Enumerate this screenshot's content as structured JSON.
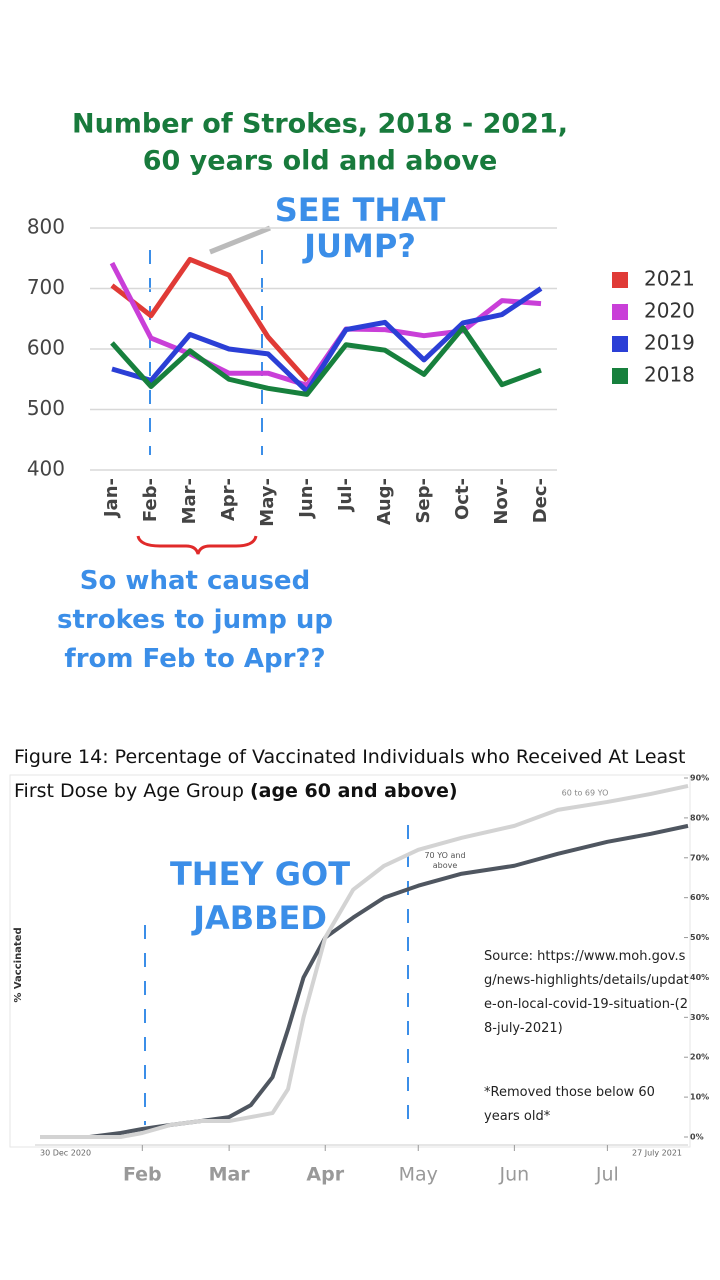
{
  "chart_data": [
    {
      "type": "line",
      "title": [
        "Number of Strokes, 2018 - 2021,",
        "60 years old and above"
      ],
      "categories": [
        "Jan-",
        "Feb-",
        "Mar-",
        "Apr-",
        "May-",
        "Jun-",
        "Jul-",
        "Aug-",
        "Sep-",
        "Oct-",
        "Nov-",
        "Dec-"
      ],
      "series": [
        {
          "name": "2021",
          "color": "#e03a36",
          "values": [
            705,
            655,
            748,
            722,
            620,
            548,
            null,
            null,
            null,
            null,
            null,
            null
          ]
        },
        {
          "name": "2020",
          "color": "#c93fd8",
          "values": [
            742,
            618,
            592,
            560,
            560,
            540,
            633,
            632,
            622,
            630,
            680,
            675
          ]
        },
        {
          "name": "2019",
          "color": "#2b3fd6",
          "values": [
            567,
            548,
            624,
            600,
            592,
            530,
            632,
            644,
            582,
            643,
            657,
            700
          ]
        },
        {
          "name": "2018",
          "color": "#17803d",
          "values": [
            610,
            538,
            597,
            550,
            535,
            525,
            607,
            598,
            558,
            635,
            541,
            565
          ]
        }
      ],
      "ylim": [
        400,
        800
      ],
      "yticks": [
        400,
        500,
        600,
        700,
        800
      ],
      "grid": true,
      "legend": "right",
      "annotations": [
        "SEE THAT JUMP?",
        "So what caused strokes to jump up from Feb to Apr??"
      ]
    },
    {
      "type": "line",
      "title": "Figure 14: Percentage of Vaccinated Individuals who Received At Least First Dose by Age Group",
      "title_emphasis": "(age 60 and above)",
      "y_label": "% Vaccinated",
      "x": [
        "2020-12-30",
        "2021-01-15",
        "2021-01-25",
        "2021-02-01",
        "2021-02-10",
        "2021-02-20",
        "2021-03-01",
        "2021-03-08",
        "2021-03-15",
        "2021-03-20",
        "2021-03-25",
        "2021-04-01",
        "2021-04-10",
        "2021-04-20",
        "2021-05-01",
        "2021-05-15",
        "2021-06-01",
        "2021-06-15",
        "2021-07-01",
        "2021-07-15",
        "2021-07-27"
      ],
      "series": [
        {
          "name": "70 YO and above",
          "color": "#4f5660",
          "values": [
            0,
            0,
            1,
            2,
            3,
            4,
            5,
            8,
            15,
            27,
            40,
            50,
            55,
            60,
            63,
            66,
            68,
            71,
            74,
            76,
            78
          ]
        },
        {
          "name": "60 to 69 YO",
          "color": "#d3d3d3",
          "values": [
            0,
            0,
            0,
            1,
            3,
            4,
            4,
            5,
            6,
            12,
            30,
            50,
            62,
            68,
            72,
            75,
            78,
            82,
            84,
            86,
            88
          ]
        }
      ],
      "xlim": [
        "2020-12-30",
        "2021-07-27"
      ],
      "xticks": [
        {
          "value": "2021-02-01",
          "label": "Feb"
        },
        {
          "value": "2021-03-01",
          "label": "Mar"
        },
        {
          "value": "2021-04-01",
          "label": "Apr"
        },
        {
          "value": "2021-05-01",
          "label": "May"
        },
        {
          "value": "2021-06-01",
          "label": "Jun"
        },
        {
          "value": "2021-07-01",
          "label": "Jul"
        }
      ],
      "date_range_labels": [
        "30 Dec 2020",
        "27 July 2021"
      ],
      "ylim": [
        0,
        90
      ],
      "yticks": [
        {
          "value": 0,
          "label": "0%"
        },
        {
          "value": 10,
          "label": "10%"
        },
        {
          "value": 20,
          "label": "20%"
        },
        {
          "value": 30,
          "label": "30%"
        },
        {
          "value": 40,
          "label": "40%"
        },
        {
          "value": 50,
          "label": "50%"
        },
        {
          "value": 60,
          "label": "60%"
        },
        {
          "value": 70,
          "label": "70%"
        },
        {
          "value": 80,
          "label": "80%"
        },
        {
          "value": 90,
          "label": "90%"
        }
      ],
      "annotations": [
        "THEY GOT JABBED",
        "Source: https://www.moh.gov.sg/news-highlights/details/update-on-local-covid-19-situation-(28-july-2021)",
        "*Removed those below 60 years old*"
      ]
    }
  ]
}
